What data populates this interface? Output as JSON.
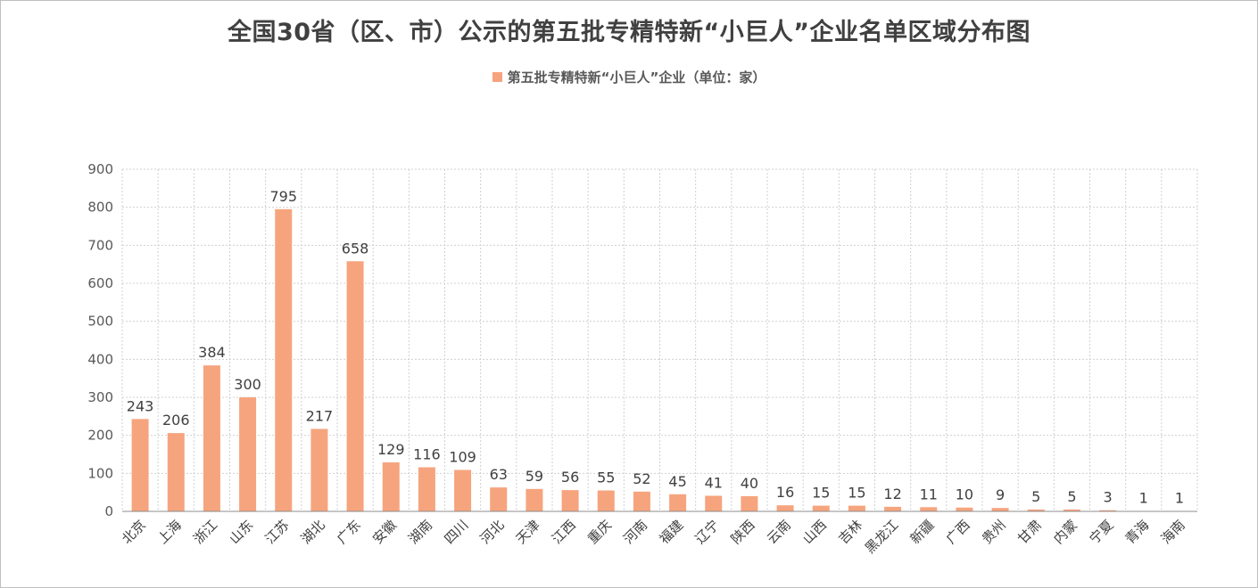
{
  "chart_data": {
    "type": "bar",
    "title": "全国30省（区、市）公示的第五批专精特新“小巨人”企业名单区域分布图",
    "xlabel": "",
    "ylabel": "",
    "ylim": [
      0,
      900
    ],
    "yticks": [
      0,
      100,
      200,
      300,
      400,
      500,
      600,
      700,
      800,
      900
    ],
    "grid": true,
    "legend_position": "top",
    "bar_color": "#f6a47e",
    "categories": [
      "北京",
      "上海",
      "浙江",
      "山东",
      "江苏",
      "湖北",
      "广东",
      "安徽",
      "湖南",
      "四川",
      "河北",
      "天津",
      "江西",
      "重庆",
      "河南",
      "福建",
      "辽宁",
      "陕西",
      "云南",
      "山西",
      "吉林",
      "黑龙江",
      "新疆",
      "广西",
      "贵州",
      "甘肃",
      "内蒙",
      "宁夏",
      "青海",
      "海南"
    ],
    "series": [
      {
        "name": "第五批专精特新“小巨人”企业（单位：家）",
        "values": [
          243,
          206,
          384,
          300,
          795,
          217,
          658,
          129,
          116,
          109,
          63,
          59,
          56,
          55,
          52,
          45,
          41,
          40,
          16,
          15,
          15,
          12,
          11,
          10,
          9,
          5,
          5,
          3,
          1,
          1
        ]
      }
    ]
  }
}
